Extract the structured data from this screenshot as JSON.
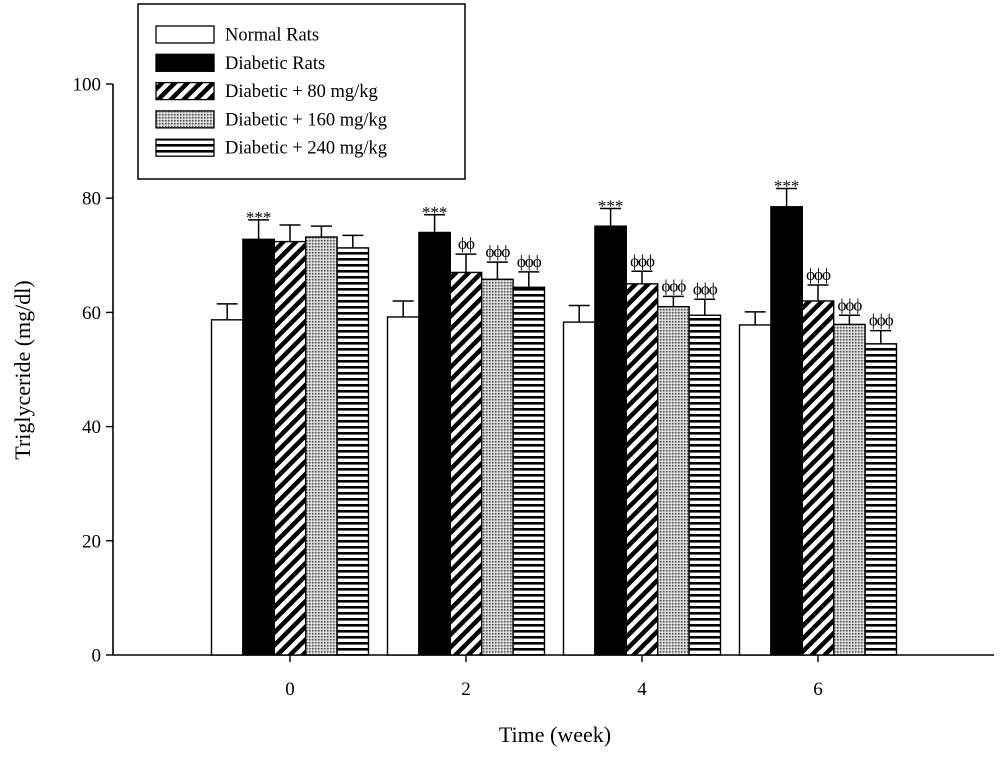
{
  "chart_data": {
    "type": "bar",
    "title": "",
    "xlabel": "Time (week)",
    "ylabel": "Triglyceride (mg/dl)",
    "ylim": [
      0,
      100
    ],
    "yticks": [
      "0",
      "20",
      "40",
      "60",
      "80",
      "100"
    ],
    "categories": [
      "0",
      "2",
      "4",
      "6"
    ],
    "grid": false,
    "legend_position": "top-left",
    "series": [
      {
        "name": "Normal Rats",
        "pattern": "white",
        "values": [
          58.7,
          59.2,
          58.3,
          57.8
        ],
        "errors": [
          2.8,
          2.8,
          2.9,
          2.3
        ],
        "annotations": [
          "",
          "",
          "",
          ""
        ]
      },
      {
        "name": "Diabetic Rats",
        "pattern": "black",
        "values": [
          72.8,
          74.0,
          75.1,
          78.5
        ],
        "errors": [
          3.4,
          3.1,
          3.1,
          3.2
        ],
        "annotations": [
          "***",
          "***",
          "***",
          "***"
        ]
      },
      {
        "name": "Diabetic + 80 mg/kg",
        "pattern": "diagonal",
        "values": [
          72.4,
          67.0,
          65.0,
          62.0
        ],
        "errors": [
          2.9,
          3.2,
          2.2,
          2.8
        ],
        "annotations": [
          "",
          "ϕϕ",
          "ϕϕϕ",
          "ϕϕϕ"
        ]
      },
      {
        "name": "Diabetic + 160 mg/kg",
        "pattern": "dotted",
        "values": [
          73.2,
          65.8,
          61.0,
          57.9
        ],
        "errors": [
          1.9,
          3.0,
          1.8,
          1.6
        ],
        "annotations": [
          "",
          "ϕϕϕ",
          "ϕϕϕ",
          "ϕϕϕ"
        ]
      },
      {
        "name": "Diabetic + 240 mg/kg",
        "pattern": "horizontal",
        "values": [
          71.3,
          64.4,
          59.5,
          54.5
        ],
        "errors": [
          2.2,
          2.7,
          2.8,
          2.3
        ],
        "annotations": [
          "",
          "ϕϕϕ",
          "ϕϕϕ",
          "ϕϕϕ"
        ]
      }
    ]
  }
}
